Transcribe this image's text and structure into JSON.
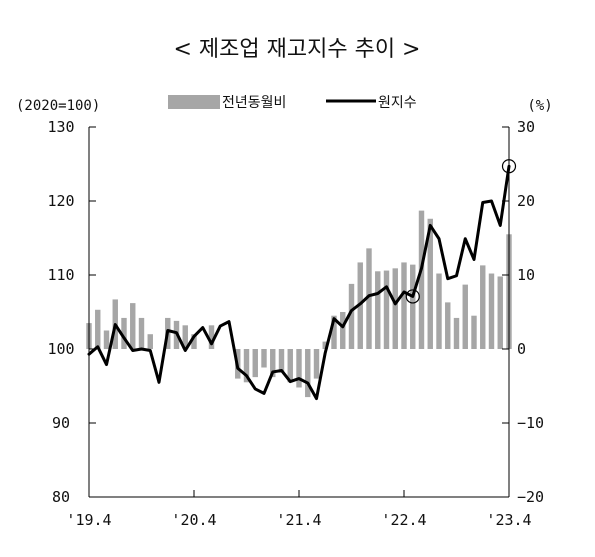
{
  "chart_data": {
    "type": "bar+line",
    "title": "< 제조업 재고지수 추이 >",
    "left_axis": {
      "unit": "(2020=100)",
      "min": 80,
      "max": 130,
      "ticks": [
        "130",
        "120",
        "110",
        "100",
        "90",
        "80"
      ]
    },
    "right_axis": {
      "unit": "(%)",
      "min": -20,
      "max": 30,
      "ticks": [
        "30",
        "20",
        "10",
        "0",
        "−10",
        "−20"
      ]
    },
    "x_tick_labels": [
      "'19.4",
      "'20.4",
      "'21.4",
      "'22.4",
      "'23.4"
    ],
    "x_tick_months": [
      0,
      12,
      24,
      36,
      48
    ],
    "legend": {
      "bar": "전년동월비",
      "line": "원지수"
    },
    "colors": {
      "bar": "#a6a6a6",
      "line": "#000000"
    },
    "series": [
      {
        "name": "전년동월비",
        "axis": "right",
        "type": "bar",
        "values": [
          3.5,
          5.3,
          2.5,
          6.7,
          4.2,
          6.2,
          4.2,
          2.0,
          0.0,
          4.2,
          3.8,
          3.2,
          2.0,
          0.0,
          3.2,
          0.0,
          0.0,
          -4.0,
          -4.5,
          -3.8,
          -2.5,
          -3.8,
          -3.2,
          -4.5,
          -5.2,
          -6.5,
          -4.0,
          1.0,
          4.5,
          5.0,
          8.8,
          11.7,
          13.6,
          10.5,
          10.6,
          10.9,
          11.7,
          11.4,
          18.7,
          17.6,
          10.2,
          6.3,
          4.2,
          8.7,
          4.5,
          11.3,
          10.2,
          9.8,
          15.5
        ]
      },
      {
        "name": "원지수",
        "axis": "left",
        "type": "line",
        "values": [
          99.3,
          100.3,
          97.9,
          103.3,
          101.5,
          99.8,
          100.0,
          99.8,
          95.5,
          102.5,
          102.2,
          99.8,
          101.7,
          102.9,
          100.7,
          103.1,
          103.7,
          97.4,
          96.4,
          94.6,
          94.0,
          96.9,
          97.1,
          95.6,
          96.0,
          95.4,
          93.3,
          99.5,
          104.1,
          103.0,
          105.2,
          106.1,
          107.2,
          107.5,
          108.4,
          106.1,
          107.7,
          107.1,
          110.9,
          116.7,
          114.9,
          109.5,
          109.9,
          114.9,
          112.1,
          119.8,
          120.0,
          116.7,
          124.7
        ]
      }
    ],
    "highlighted_points": [
      37,
      48
    ]
  }
}
